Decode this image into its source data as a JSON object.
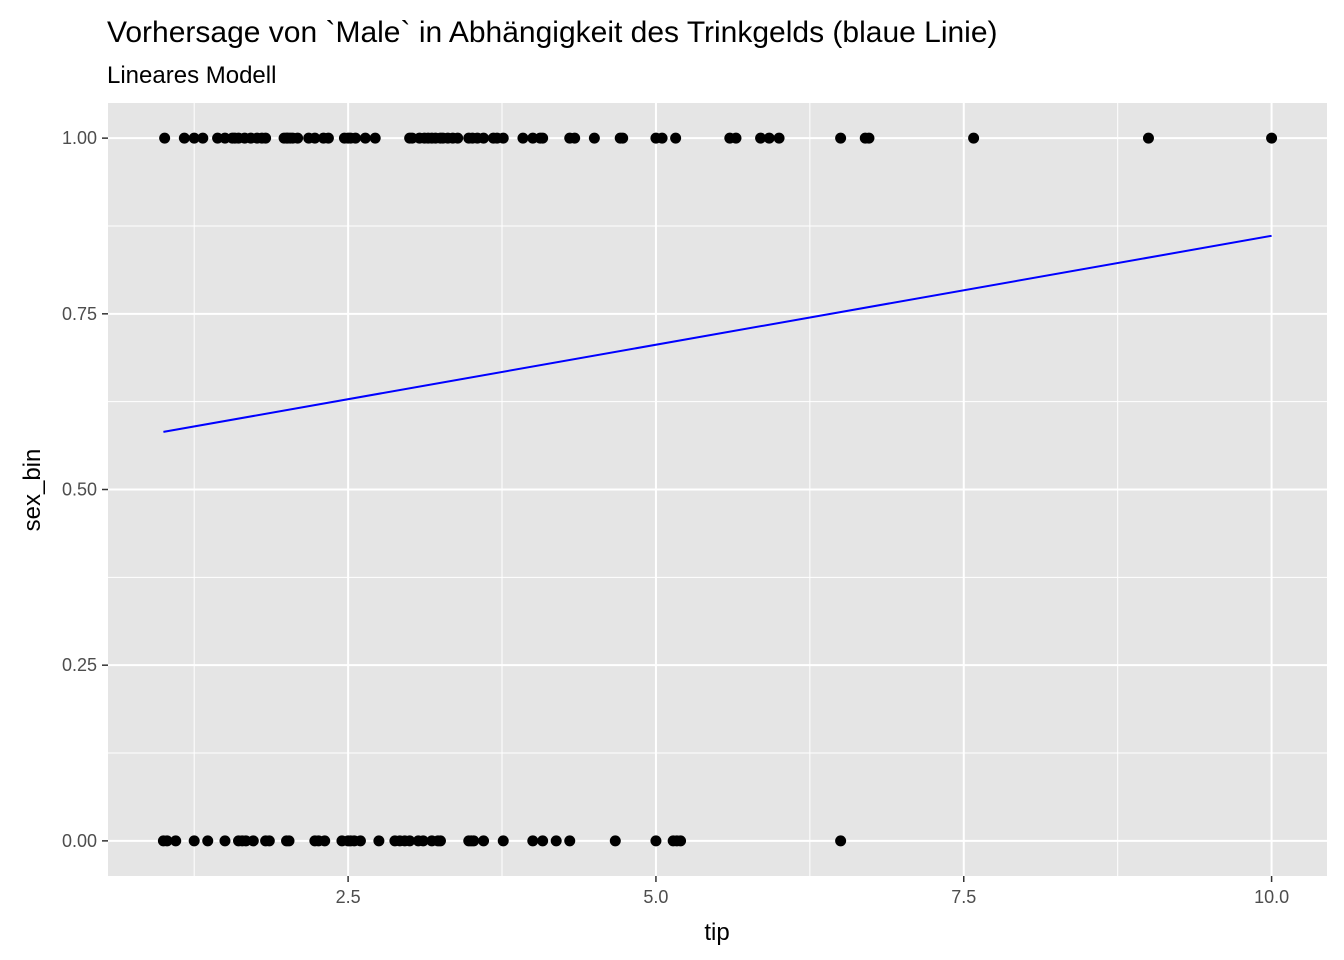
{
  "chart_data": {
    "type": "scatter",
    "title": "Vorhersage von `Male` in Abhängigkeit des Trinkgelds (blaue Linie)",
    "subtitle": "Lineares Modell",
    "xlabel": "tip",
    "ylabel": "sex_bin",
    "xlim": [
      0.55,
      10.45
    ],
    "ylim": [
      -0.05,
      1.05
    ],
    "x_ticks": [
      2.5,
      5.0,
      7.5,
      10.0
    ],
    "x_tick_labels": [
      "2.5",
      "5.0",
      "7.5",
      "10.0"
    ],
    "y_ticks": [
      0.0,
      0.25,
      0.5,
      0.75,
      1.0
    ],
    "y_tick_labels": [
      "0.00",
      "0.25",
      "0.50",
      "0.75",
      "1.00"
    ],
    "grid": true,
    "panel_background": "#e5e5e5",
    "grid_color": "#ffffff",
    "point_color": "#000000",
    "line_color": "#0000ff",
    "series": [
      {
        "type": "points",
        "points": [
          [
            1.01,
            1
          ],
          [
            1.17,
            1
          ],
          [
            1.25,
            1
          ],
          [
            1.32,
            1
          ],
          [
            1.44,
            1
          ],
          [
            1.5,
            1
          ],
          [
            1.56,
            1
          ],
          [
            1.58,
            1
          ],
          [
            1.61,
            1
          ],
          [
            1.66,
            1
          ],
          [
            1.71,
            1
          ],
          [
            1.76,
            1
          ],
          [
            1.8,
            1
          ],
          [
            1.83,
            1
          ],
          [
            1.98,
            1
          ],
          [
            2.0,
            1
          ],
          [
            2.01,
            1
          ],
          [
            2.03,
            1
          ],
          [
            2.05,
            1
          ],
          [
            2.09,
            1
          ],
          [
            2.18,
            1
          ],
          [
            2.23,
            1
          ],
          [
            2.3,
            1
          ],
          [
            2.34,
            1
          ],
          [
            2.47,
            1
          ],
          [
            2.5,
            1
          ],
          [
            2.52,
            1
          ],
          [
            2.56,
            1
          ],
          [
            2.64,
            1
          ],
          [
            2.72,
            1
          ],
          [
            3.0,
            1
          ],
          [
            3.02,
            1
          ],
          [
            3.08,
            1
          ],
          [
            3.12,
            1
          ],
          [
            3.15,
            1
          ],
          [
            3.18,
            1
          ],
          [
            3.21,
            1
          ],
          [
            3.25,
            1
          ],
          [
            3.27,
            1
          ],
          [
            3.31,
            1
          ],
          [
            3.35,
            1
          ],
          [
            3.39,
            1
          ],
          [
            3.48,
            1
          ],
          [
            3.51,
            1
          ],
          [
            3.55,
            1
          ],
          [
            3.6,
            1
          ],
          [
            3.68,
            1
          ],
          [
            3.71,
            1
          ],
          [
            3.76,
            1
          ],
          [
            3.92,
            1
          ],
          [
            4.0,
            1
          ],
          [
            4.06,
            1
          ],
          [
            4.08,
            1
          ],
          [
            4.3,
            1
          ],
          [
            4.34,
            1
          ],
          [
            4.5,
            1
          ],
          [
            4.71,
            1
          ],
          [
            4.73,
            1
          ],
          [
            5.0,
            1
          ],
          [
            5.05,
            1
          ],
          [
            5.16,
            1
          ],
          [
            5.6,
            1
          ],
          [
            5.65,
            1
          ],
          [
            5.85,
            1
          ],
          [
            5.92,
            1
          ],
          [
            6.0,
            1
          ],
          [
            6.5,
            1
          ],
          [
            6.7,
            1
          ],
          [
            6.73,
            1
          ],
          [
            7.58,
            1
          ],
          [
            9.0,
            1
          ],
          [
            10.0,
            1
          ],
          [
            1.0,
            0
          ],
          [
            1.03,
            0
          ],
          [
            1.1,
            0
          ],
          [
            1.25,
            0
          ],
          [
            1.36,
            0
          ],
          [
            1.5,
            0
          ],
          [
            1.61,
            0
          ],
          [
            1.64,
            0
          ],
          [
            1.67,
            0
          ],
          [
            1.73,
            0
          ],
          [
            1.83,
            0
          ],
          [
            1.86,
            0
          ],
          [
            2.0,
            0
          ],
          [
            2.02,
            0
          ],
          [
            2.23,
            0
          ],
          [
            2.26,
            0
          ],
          [
            2.31,
            0
          ],
          [
            2.45,
            0
          ],
          [
            2.5,
            0
          ],
          [
            2.52,
            0
          ],
          [
            2.55,
            0
          ],
          [
            2.6,
            0
          ],
          [
            2.75,
            0
          ],
          [
            2.88,
            0
          ],
          [
            2.92,
            0
          ],
          [
            2.96,
            0
          ],
          [
            3.0,
            0
          ],
          [
            3.07,
            0
          ],
          [
            3.11,
            0
          ],
          [
            3.18,
            0
          ],
          [
            3.23,
            0
          ],
          [
            3.25,
            0
          ],
          [
            3.48,
            0
          ],
          [
            3.5,
            0
          ],
          [
            3.52,
            0
          ],
          [
            3.6,
            0
          ],
          [
            3.76,
            0
          ],
          [
            4.0,
            0
          ],
          [
            4.08,
            0
          ],
          [
            4.19,
            0
          ],
          [
            4.3,
            0
          ],
          [
            4.67,
            0
          ],
          [
            5.0,
            0
          ],
          [
            5.14,
            0
          ],
          [
            5.17,
            0
          ],
          [
            5.2,
            0
          ],
          [
            6.5,
            0
          ]
        ]
      },
      {
        "type": "line",
        "points": [
          [
            1.0,
            0.582
          ],
          [
            10.0,
            0.861
          ]
        ]
      }
    ]
  }
}
